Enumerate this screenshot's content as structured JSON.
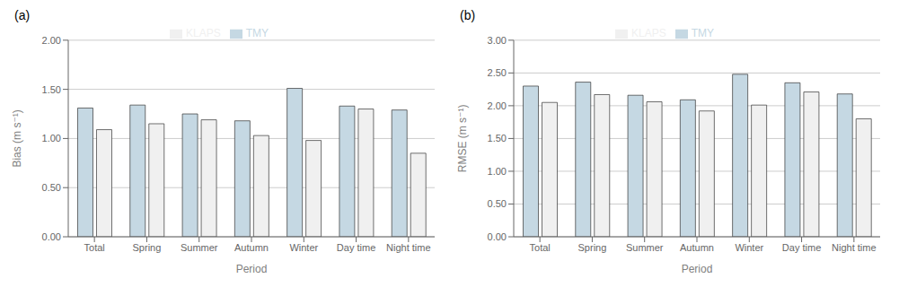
{
  "chart_data": [
    {
      "type": "bar",
      "title": "(a)",
      "x_label": "Period",
      "y_label": "Bias (m s⁻¹)",
      "categories": [
        "Total",
        "Spring",
        "Summer",
        "Autumn",
        "Winter",
        "Day time",
        "Night time"
      ],
      "series": [
        {
          "name": "TMY",
          "color": "#c5d8e3",
          "values": [
            1.31,
            1.34,
            1.25,
            1.18,
            1.51,
            1.33,
            1.29
          ]
        },
        {
          "name": "KLAPS",
          "color": "#f0f0f0",
          "values": [
            1.09,
            1.15,
            1.19,
            1.03,
            0.98,
            1.3,
            0.85
          ]
        }
      ],
      "ylim": [
        0.0,
        2.0
      ],
      "yticks": [
        {
          "value": 0.0,
          "label": "0.00"
        },
        {
          "value": 0.5,
          "label": "0.50"
        },
        {
          "value": 1.0,
          "label": "1.00"
        },
        {
          "value": 1.5,
          "label": "1.50"
        },
        {
          "value": 2.0,
          "label": "2.00"
        }
      ],
      "grid": true,
      "legend": "top"
    },
    {
      "type": "bar",
      "title": "(b)",
      "x_label": "Period",
      "y_label": "RMSE (m s⁻¹)",
      "categories": [
        "Total",
        "Spring",
        "Summer",
        "Autumn",
        "Winter",
        "Day time",
        "Night time"
      ],
      "series": [
        {
          "name": "TMY",
          "color": "#c5d8e3",
          "values": [
            2.3,
            2.36,
            2.16,
            2.09,
            2.48,
            2.35,
            2.18
          ]
        },
        {
          "name": "KLAPS",
          "color": "#f0f0f0",
          "values": [
            2.05,
            2.17,
            2.06,
            1.92,
            2.01,
            2.21,
            1.8
          ]
        }
      ],
      "ylim": [
        0.0,
        3.0
      ],
      "yticks": [
        {
          "value": 0.0,
          "label": "0.00"
        },
        {
          "value": 0.5,
          "label": "0.50"
        },
        {
          "value": 1.0,
          "label": "1.00"
        },
        {
          "value": 1.5,
          "label": "1.50"
        },
        {
          "value": 2.0,
          "label": "2.00"
        },
        {
          "value": 2.5,
          "label": "2.50"
        },
        {
          "value": 3.0,
          "label": "3.00"
        }
      ],
      "grid": true,
      "legend": "top"
    }
  ]
}
